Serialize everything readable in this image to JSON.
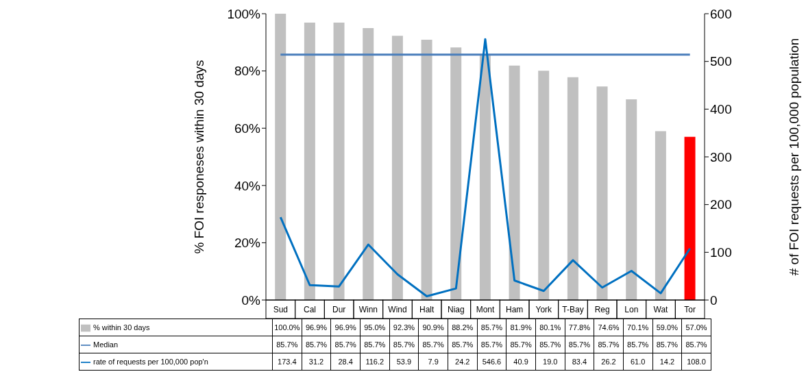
{
  "chart_data": {
    "type": "bar",
    "categories": [
      "Sud",
      "Cal",
      "Dur",
      "Winn",
      "Wind",
      "Halt",
      "Niag",
      "Mont",
      "Ham",
      "York",
      "T-Bay",
      "Reg",
      "Lon",
      "Wat",
      "Tor"
    ],
    "ylabel": "% FOI responeses within 30 days",
    "y2label": "# of FOI requests per 100,000 population",
    "ylim": [
      0,
      100
    ],
    "yticks": [
      {
        "value": 0,
        "label": "0%"
      },
      {
        "value": 20,
        "label": "20%"
      },
      {
        "value": 40,
        "label": "40%"
      },
      {
        "value": 60,
        "label": "60%"
      },
      {
        "value": 80,
        "label": "80%"
      },
      {
        "value": 100,
        "label": "100%"
      }
    ],
    "y2lim": [
      0,
      600
    ],
    "y2ticks": [
      0,
      100,
      200,
      300,
      400,
      500,
      600
    ],
    "legend": "bottom",
    "series": [
      {
        "name": "% within 30 days",
        "type": "bar",
        "color": "#c0c0c0",
        "colors": [
          "#c0c0c0",
          "#c0c0c0",
          "#c0c0c0",
          "#c0c0c0",
          "#c0c0c0",
          "#c0c0c0",
          "#c0c0c0",
          "#c0c0c0",
          "#c0c0c0",
          "#c0c0c0",
          "#c0c0c0",
          "#c0c0c0",
          "#c0c0c0",
          "#c0c0c0",
          "#ff0000"
        ],
        "values": [
          100.0,
          96.9,
          96.9,
          95.0,
          92.3,
          90.9,
          88.2,
          85.7,
          81.9,
          80.1,
          77.8,
          74.6,
          70.1,
          59.0,
          57.0
        ],
        "value_labels": [
          "100.0%",
          "96.9%",
          "96.9%",
          "95.0%",
          "92.3%",
          "90.9%",
          "88.2%",
          "85.7%",
          "81.9%",
          "80.1%",
          "77.8%",
          "74.6%",
          "70.1%",
          "59.0%",
          "57.0%"
        ]
      },
      {
        "name": "Median",
        "type": "line",
        "color": "#4a7ebb",
        "values": [
          85.7,
          85.7,
          85.7,
          85.7,
          85.7,
          85.7,
          85.7,
          85.7,
          85.7,
          85.7,
          85.7,
          85.7,
          85.7,
          85.7,
          85.7
        ],
        "value_labels": [
          "85.7%",
          "85.7%",
          "85.7%",
          "85.7%",
          "85.7%",
          "85.7%",
          "85.7%",
          "85.7%",
          "85.7%",
          "85.7%",
          "85.7%",
          "85.7%",
          "85.7%",
          "85.7%",
          "85.7%"
        ]
      },
      {
        "name": "rate of requests per 100,000 pop'n",
        "type": "line",
        "axis": "y2",
        "color": "#0070c0",
        "values": [
          173.4,
          31.2,
          28.4,
          116.2,
          53.9,
          7.9,
          24.2,
          546.6,
          40.9,
          19.0,
          83.4,
          26.2,
          61.0,
          14.2,
          108.0
        ],
        "value_labels": [
          "173.4",
          "31.2",
          "28.4",
          "116.2",
          "53.9",
          "7.9",
          "24.2",
          "546.6",
          "40.9",
          "19.0",
          "83.4",
          "26.2",
          "61.0",
          "14.2",
          "108.0"
        ]
      }
    ]
  }
}
